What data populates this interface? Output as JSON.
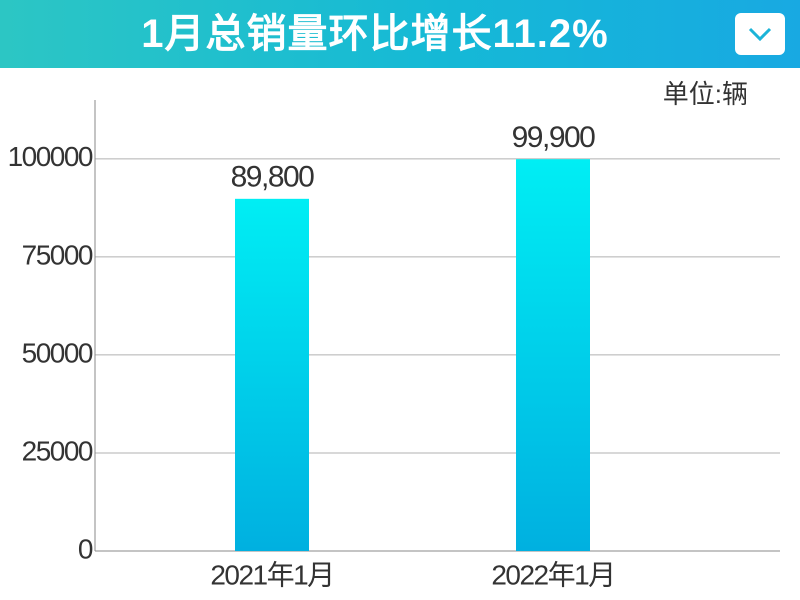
{
  "header": {
    "title": "1月总销量环比增长11.2%"
  },
  "chart_data": {
    "type": "bar",
    "unit": "单位:辆",
    "categories": [
      "2021年1月",
      "2022年1月"
    ],
    "values": [
      89800,
      99900
    ],
    "value_labels": [
      "89,800",
      "99,900"
    ],
    "colors": [
      "#00eef4",
      "#00b0e0"
    ],
    "ylim": [
      0,
      115000
    ],
    "yticks": [
      0,
      25000,
      50000,
      75000,
      100000
    ],
    "grid": true
  }
}
